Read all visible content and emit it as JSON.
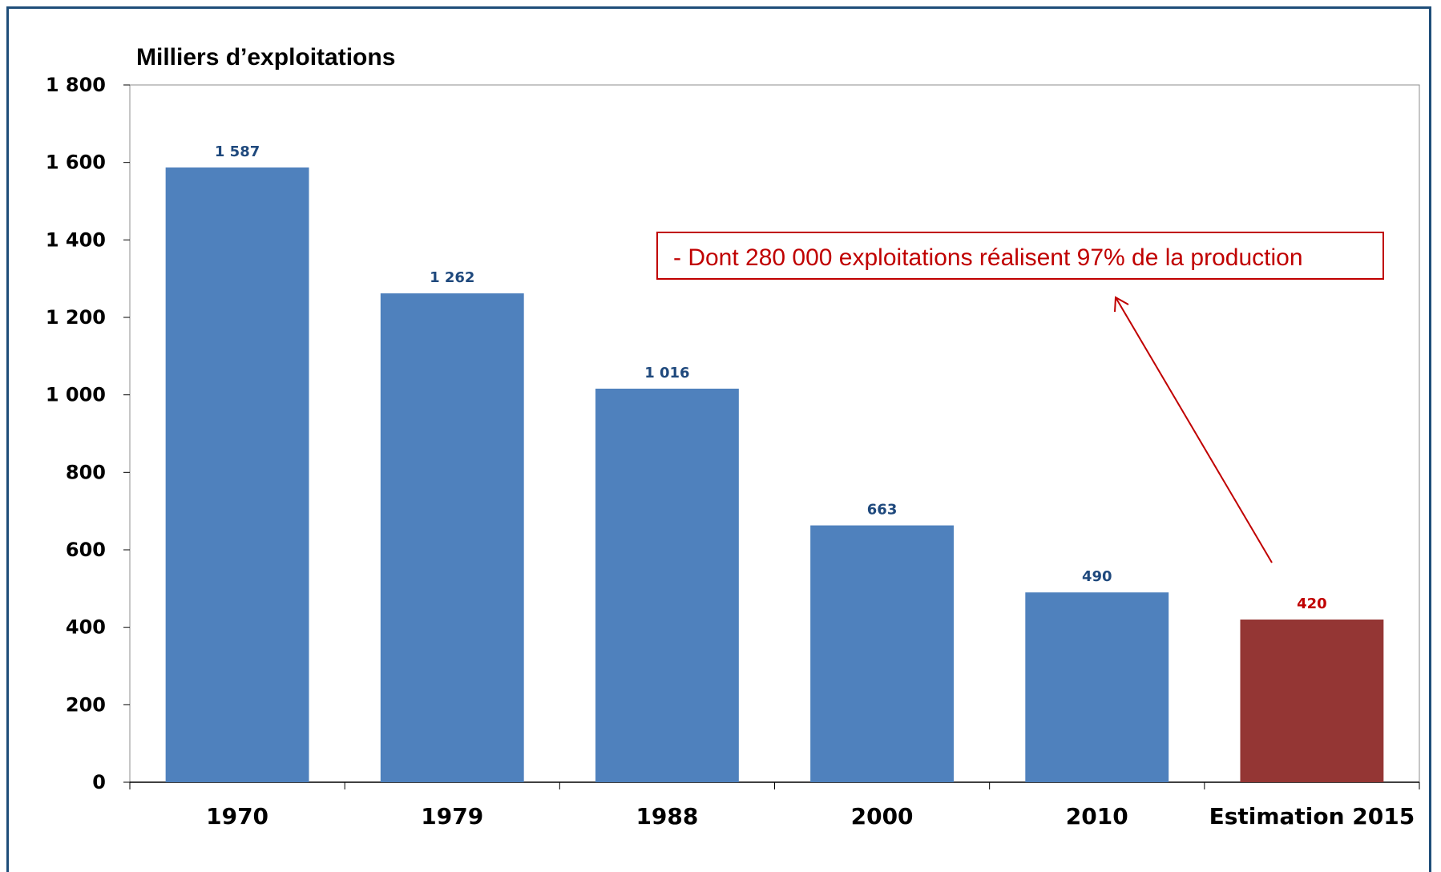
{
  "chart_data": {
    "type": "bar",
    "title": "",
    "ylabel": "Milliers d’exploitations",
    "xlabel": "",
    "categories": [
      "1970",
      "1979",
      "1988",
      "2000",
      "2010",
      "Estimation 2015"
    ],
    "values": [
      1587,
      1262,
      1016,
      663,
      490,
      420
    ],
    "value_labels": [
      "1 587",
      "1 262",
      "1 016",
      "663",
      "490",
      "420"
    ],
    "bar_colors": [
      "#4f81bd",
      "#4f81bd",
      "#4f81bd",
      "#4f81bd",
      "#4f81bd",
      "#943634"
    ],
    "label_colors": [
      "#1f497d",
      "#1f497d",
      "#1f497d",
      "#1f497d",
      "#1f497d",
      "#c00000"
    ],
    "ylim": [
      0,
      1800
    ],
    "yticks": [
      0,
      200,
      400,
      600,
      800,
      1000,
      1200,
      1400,
      1600,
      1800
    ],
    "ytick_labels": [
      "0",
      "200",
      "400",
      "600",
      "800",
      "1 000",
      "1 200",
      "1 400",
      "1 600",
      "1 800"
    ],
    "grid": false,
    "legend": "none",
    "annotation": {
      "text": "- Dont 280 000 exploitations réalisent 97% de la production",
      "color": "#c00000",
      "points_to": "Estimation 2015"
    },
    "frame_color": "#1f4e79"
  }
}
